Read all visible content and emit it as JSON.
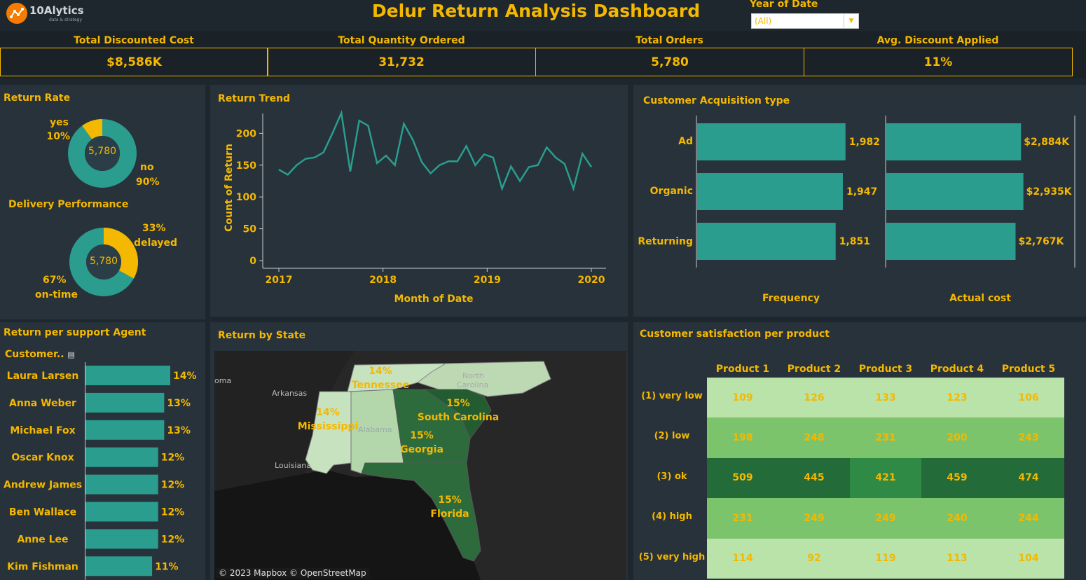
{
  "header": {
    "logo_text": "10Alytics",
    "logo_tagline": "data & strategy",
    "title": "Delur Return Analysis Dashboard",
    "filter_label": "Year of Date",
    "filter_value": "(All)"
  },
  "kpis": [
    {
      "label": "Total Discounted Cost",
      "value": "$8,586K"
    },
    {
      "label": "Total Quantity Ordered",
      "value": "31,732"
    },
    {
      "label": "Total Orders",
      "value": "5,780"
    },
    {
      "label": "Avg. Discount Applied",
      "value": "11%"
    }
  ],
  "return_rate": {
    "title": "Return Rate",
    "center": "5,780",
    "yes_label": "yes",
    "yes_pct": "10%",
    "no_label": "no",
    "no_pct": "90%",
    "yes_fraction": 0.1
  },
  "delivery": {
    "title": "Delivery Performance",
    "center": "5,780",
    "delayed_pct": "33%",
    "delayed_label": "delayed",
    "ontime_pct": "67%",
    "ontime_label": "on-time",
    "delayed_fraction": 0.33
  },
  "trend": {
    "title": "Return Trend",
    "ylabel": "Count of Return",
    "xlabel": "Month of Date",
    "yticks": [
      "200",
      "150",
      "100",
      "50",
      "0"
    ],
    "xticks": [
      "2017",
      "2018",
      "2019",
      "2020"
    ]
  },
  "acquisition": {
    "title": "Customer Acquisition type",
    "categories": [
      "Ad",
      "Organic",
      "Returning"
    ],
    "freq_labels": [
      "1,982",
      "1,947",
      "1,851"
    ],
    "cost_labels": [
      "$2,884K",
      "$2,935K",
      "$2,767K"
    ],
    "freq_axis": "Frequency",
    "cost_axis": "Actual cost"
  },
  "agents": {
    "title": "Return per support Agent",
    "column_header": "Customer..",
    "names": [
      "Laura Larsen",
      "Anna Weber",
      "Michael Fox",
      "Oscar Knox",
      "Andrew James",
      "Ben Wallace",
      "Anne Lee",
      "Kim Fishman"
    ],
    "labels": [
      "14%",
      "13%",
      "13%",
      "12%",
      "12%",
      "12%",
      "12%",
      "11%"
    ]
  },
  "map": {
    "title": "Return by State",
    "attribution": "© 2023 Mapbox © OpenStreetMap",
    "states": [
      {
        "name": "Tennessee",
        "pct": "14%"
      },
      {
        "name": "Mississippi",
        "pct": "14%"
      },
      {
        "name": "South Carolina",
        "pct": "15%"
      },
      {
        "name": "Georgia",
        "pct": "15%"
      },
      {
        "name": "Florida",
        "pct": "15%"
      }
    ],
    "basemap_labels": [
      "Arkansas",
      "Louisiana",
      "Alabama",
      "North Carolina",
      "Oklahoma"
    ]
  },
  "satisfaction": {
    "title": "Customer satisfaction per product",
    "products": [
      "Product 1",
      "Product 2",
      "Product 3",
      "Product 4",
      "Product 5"
    ],
    "levels": [
      "(1) very low",
      "(2) low",
      "(3) ok",
      "(4) high",
      "(5) very high"
    ],
    "values": [
      [
        "109",
        "126",
        "133",
        "123",
        "106"
      ],
      [
        "198",
        "248",
        "231",
        "200",
        "243"
      ],
      [
        "509",
        "445",
        "421",
        "459",
        "474"
      ],
      [
        "231",
        "249",
        "249",
        "240",
        "244"
      ],
      [
        "114",
        "92",
        "119",
        "113",
        "104"
      ]
    ]
  },
  "chart_data": [
    {
      "type": "line",
      "title": "Return Trend",
      "xlabel": "Month of Date",
      "ylabel": "Count of Return",
      "x": [
        "2017-01",
        "2017-02",
        "2017-03",
        "2017-04",
        "2017-05",
        "2017-06",
        "2017-07",
        "2017-08",
        "2017-09",
        "2017-10",
        "2017-11",
        "2017-12",
        "2018-01",
        "2018-02",
        "2018-03",
        "2018-04",
        "2018-05",
        "2018-06",
        "2018-07",
        "2018-08",
        "2018-09",
        "2018-10",
        "2018-11",
        "2018-12",
        "2019-01",
        "2019-02",
        "2019-03",
        "2019-04",
        "2019-05",
        "2019-06",
        "2019-07",
        "2019-08",
        "2019-09",
        "2019-10",
        "2019-11",
        "2019-12"
      ],
      "values": [
        143,
        135,
        150,
        160,
        162,
        170,
        200,
        232,
        140,
        220,
        212,
        153,
        165,
        150,
        215,
        190,
        155,
        137,
        150,
        156,
        156,
        180,
        150,
        167,
        162,
        113,
        148,
        125,
        147,
        150,
        178,
        162,
        152,
        113,
        168,
        147
      ],
      "ylim": [
        0,
        240
      ],
      "color": "#2a9d8f"
    },
    {
      "type": "bar",
      "title": "Customer Acquisition type",
      "categories": [
        "Ad",
        "Organic",
        "Returning"
      ],
      "series": [
        {
          "name": "Frequency",
          "values": [
            1982,
            1947,
            1851
          ]
        },
        {
          "name": "Actual cost",
          "values": [
            2884,
            2935,
            2767
          ]
        }
      ],
      "color": "#2a9d8f"
    },
    {
      "type": "pie",
      "title": "Return Rate",
      "categories": [
        "yes",
        "no"
      ],
      "values": [
        10,
        90
      ],
      "colors": [
        "#f5b800",
        "#2a9d8f"
      ]
    },
    {
      "type": "pie",
      "title": "Delivery Performance",
      "categories": [
        "delayed",
        "on-time"
      ],
      "values": [
        33,
        67
      ],
      "colors": [
        "#f5b800",
        "#2a9d8f"
      ]
    },
    {
      "type": "bar",
      "title": "Return per support Agent",
      "categories": [
        "Laura Larsen",
        "Anna Weber",
        "Michael Fox",
        "Oscar Knox",
        "Andrew James",
        "Ben Wallace",
        "Anne Lee",
        "Kim Fishman"
      ],
      "values": [
        14,
        13,
        13,
        12,
        12,
        12,
        12,
        11
      ]
    },
    {
      "type": "heatmap",
      "title": "Customer satisfaction per product",
      "x": [
        "Product 1",
        "Product 2",
        "Product 3",
        "Product 4",
        "Product 5"
      ],
      "y": [
        "(1) very low",
        "(2) low",
        "(3) ok",
        "(4) high",
        "(5) very high"
      ],
      "values": [
        [
          109,
          126,
          133,
          123,
          106
        ],
        [
          198,
          248,
          231,
          200,
          243
        ],
        [
          509,
          445,
          421,
          459,
          474
        ],
        [
          231,
          249,
          249,
          240,
          244
        ],
        [
          114,
          92,
          119,
          113,
          104
        ]
      ]
    }
  ],
  "colors": {
    "accent": "#f5b800",
    "teal": "#2a9d8f",
    "background": "#1e272d",
    "panel": "#27323a"
  }
}
